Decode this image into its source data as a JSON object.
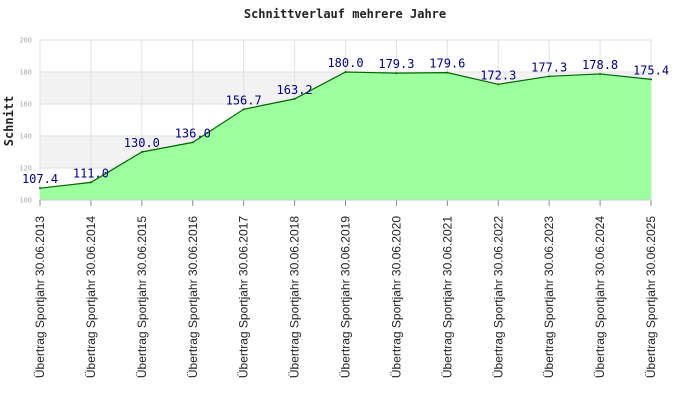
{
  "chart_data": {
    "type": "area",
    "title": "Schnittverlauf mehrere Jahre",
    "xlabel": "",
    "ylabel": "Schnitt",
    "ylim": [
      100,
      200
    ],
    "yticks": [
      "100",
      "120",
      "140",
      "160",
      "180",
      "200"
    ],
    "grid": true,
    "legend": "none",
    "categories": [
      "Übertrag Sportjahr 30.06.2013",
      "Übertrag Sportjahr 30.06.2014",
      "Übertrag Sportjahr 30.06.2015",
      "Übertrag Sportjahr 30.06.2016",
      "Übertrag Sportjahr 30.06.2017",
      "Übertrag Sportjahr 30.06.2018",
      "Übertrag Sportjahr 30.06.2019",
      "Übertrag Sportjahr 30.06.2020",
      "Übertrag Sportjahr 30.06.2021",
      "Übertrag Sportjahr 30.06.2022",
      "Übertrag Sportjahr 30.06.2023",
      "Übertrag Sportjahr 30.06.2024",
      "Übertrag Sportjahr 30.06.2025"
    ],
    "values": [
      107.4,
      111.0,
      130.0,
      136.0,
      156.7,
      163.2,
      180.0,
      179.3,
      179.6,
      172.3,
      177.3,
      178.8,
      175.4
    ],
    "data_labels": [
      "107.4",
      "111.0",
      "130.0",
      "136.0",
      "156.7",
      "163.2",
      "180.0",
      "179.3",
      "179.6",
      "172.3",
      "177.3",
      "178.8",
      "175.4"
    ],
    "colors": {
      "fill": "#99ff99",
      "line": "#006600",
      "band": "#f2f2f2",
      "grid": "#e2e2e2",
      "label": "#00007a"
    }
  }
}
